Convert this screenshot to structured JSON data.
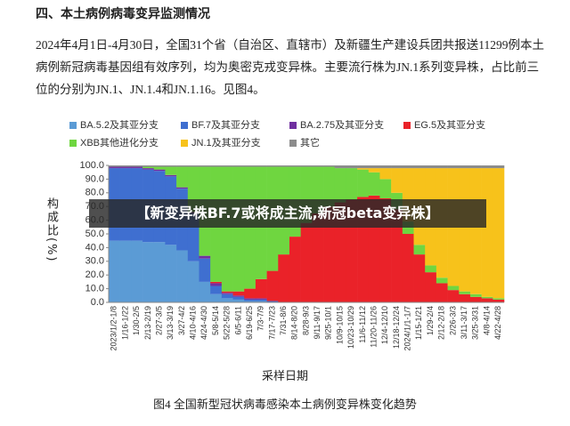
{
  "heading": "四、本土病例病毒变异监测情况",
  "paragraph": "2024年4月1日-4月30日，全国31个省（自治区、直辖市）及新疆生产建设兵团共报送11299例本土病例新冠病毒基因组有效序列，均为奥密克戎变异株。主要流行株为JN.1系列变异株，占比前三位的分别为JN.1、JN.1.4和JN.1.16。见图4。",
  "banner": "【新变异株BF.7或将成主流,新冠beta变异株】",
  "chart_data": {
    "type": "stacked-bar",
    "caption": "图4 全国新型冠状病毒感染本土病例变异株变化趋势",
    "xlabel": "采样日期",
    "ylabel": "构成比(%)",
    "categories": [
      "2023/1/2-1/8",
      "1/16-1/22",
      "1/30-2/5",
      "2/13-2/19",
      "2/27-3/5",
      "3/13-3/19",
      "3/27-4/2",
      "4/10-4/16",
      "4/24-4/30",
      "5/8-5/14",
      "5/22-5/28",
      "6/5-6/11",
      "6/19-6/25",
      "7/3-7/9",
      "7/17-7/23",
      "7/31-8/6",
      "8/14-8/20",
      "8/28-9/3",
      "9/11-9/17",
      "9/25-10/1",
      "10/9-10/15",
      "10/23-10/29",
      "11/6-11/12",
      "11/20-11/26",
      "12/4-12/10",
      "12/18-12/24",
      "2024/1/1-1/7",
      "1/15-1/21",
      "1/29-2/4",
      "2/12-2/18",
      "2/26-3/3",
      "3/11-3/17",
      "3/25-3/31",
      "4/8-4/14",
      "4/22-4/28"
    ],
    "series": [
      {
        "name": "BA.5.2及其亚分支",
        "color": "#5b9bd5",
        "values": [
          45,
          45,
          45,
          44,
          44,
          42,
          38,
          30,
          15,
          6,
          3,
          2,
          1,
          1,
          0,
          0,
          0,
          0,
          0,
          0,
          0,
          0,
          0,
          0,
          0,
          0,
          0,
          0,
          0,
          0,
          0,
          0,
          0,
          0,
          0
        ]
      },
      {
        "name": "BF.7及其亚分支",
        "color": "#3f6fd0",
        "values": [
          53,
          53,
          53,
          53,
          52,
          50,
          45,
          35,
          17,
          6,
          3,
          2,
          1,
          1,
          1,
          0,
          0,
          0,
          0,
          0,
          0,
          0,
          0,
          0,
          0,
          0,
          0,
          0,
          0,
          0,
          0,
          0,
          0,
          0,
          0
        ]
      },
      {
        "name": "BA.2.75及其亚分支",
        "color": "#7030a0",
        "values": [
          1,
          1,
          1,
          1,
          1,
          1,
          1,
          1,
          2,
          2,
          1,
          1,
          1,
          1,
          0,
          0,
          0,
          0,
          0,
          0,
          0,
          0,
          0,
          0,
          0,
          0,
          0,
          0,
          0,
          0,
          0,
          0,
          0,
          0,
          0
        ]
      },
      {
        "name": "EG.5及其亚分支",
        "color": "#ea2229",
        "values": [
          0,
          0,
          0,
          0,
          0,
          0,
          0,
          0,
          0,
          1,
          1,
          3,
          7,
          14,
          22,
          35,
          48,
          58,
          65,
          70,
          73,
          75,
          77,
          78,
          76,
          68,
          50,
          35,
          22,
          14,
          9,
          6,
          4,
          3,
          2
        ]
      },
      {
        "name": "XBB其他进化分支",
        "color": "#6fd640",
        "values": [
          0,
          0,
          0,
          1,
          2,
          6,
          15,
          33,
          65,
          84,
          91,
          91,
          89,
          82,
          76,
          64,
          51,
          41,
          34,
          29,
          25,
          23,
          20,
          17,
          14,
          12,
          9,
          7,
          5,
          4,
          3,
          2,
          2,
          1,
          1
        ]
      },
      {
        "name": "JN.1及其亚分支",
        "color": "#f7c21b",
        "values": [
          0,
          0,
          0,
          0,
          0,
          0,
          0,
          0,
          0,
          0,
          0,
          0,
          0,
          0,
          0,
          0,
          0,
          0,
          0,
          0,
          0,
          0,
          1,
          3,
          8,
          18,
          39,
          56,
          71,
          80,
          86,
          90,
          92,
          94,
          95
        ]
      },
      {
        "name": "其它",
        "color": "#8c8c8c",
        "values": [
          1,
          1,
          1,
          1,
          1,
          1,
          1,
          1,
          1,
          1,
          1,
          1,
          1,
          1,
          1,
          1,
          1,
          1,
          1,
          1,
          2,
          2,
          2,
          2,
          2,
          2,
          2,
          2,
          2,
          2,
          2,
          2,
          2,
          2,
          2
        ]
      }
    ],
    "ylim": [
      0,
      100
    ],
    "yticks": [
      {
        "value": 0,
        "label": "0.0"
      },
      {
        "value": 10,
        "label": "10.0"
      },
      {
        "value": 20,
        "label": "20.0"
      },
      {
        "value": 30,
        "label": "30.0"
      },
      {
        "value": 40,
        "label": "40.0"
      },
      {
        "value": 50,
        "label": "50.0"
      },
      {
        "value": 60,
        "label": "60.0"
      },
      {
        "value": 70,
        "label": "70.0"
      },
      {
        "value": 80,
        "label": "80.0"
      },
      {
        "value": 90,
        "label": "90.0"
      },
      {
        "value": 100,
        "label": "100.0"
      }
    ]
  }
}
